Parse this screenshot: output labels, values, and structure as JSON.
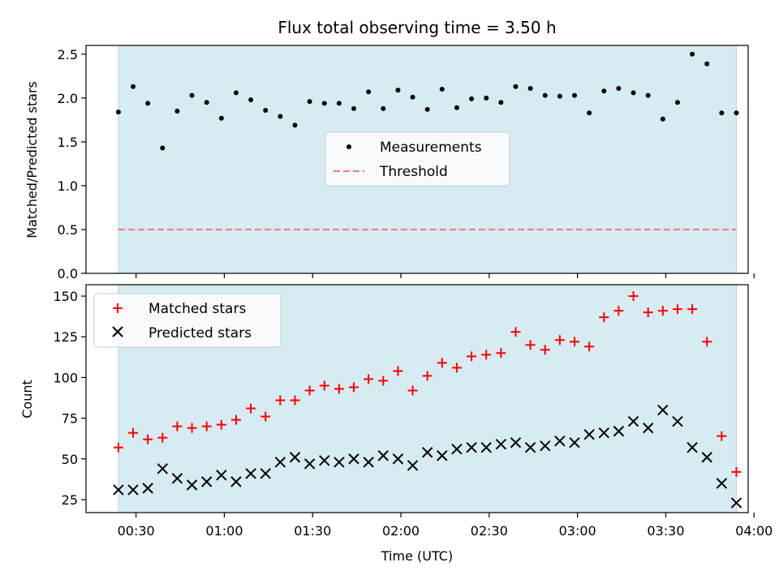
{
  "chart_data": {
    "title": "Flux total observing time = 3.50 h",
    "xlabel": "Time (UTC)",
    "x_unit": "minutes after 00:00 UTC",
    "xlim": [
      13,
      238
    ],
    "xticks": [
      30,
      60,
      90,
      120,
      150,
      180,
      210,
      240
    ],
    "xtick_labels": [
      "00:30",
      "01:00",
      "01:30",
      "02:00",
      "02:30",
      "03:00",
      "03:30",
      "04:00"
    ],
    "shaded_span": {
      "from": 24,
      "to": 234,
      "color": "#add8e6"
    },
    "x": [
      24,
      29,
      34,
      39,
      44,
      49,
      54,
      59,
      64,
      69,
      74,
      79,
      84,
      89,
      94,
      99,
      104,
      109,
      114,
      119,
      124,
      129,
      134,
      139,
      144,
      149,
      154,
      159,
      164,
      169,
      174,
      179,
      184,
      189,
      194,
      199,
      204,
      209,
      214,
      219,
      224,
      229,
      234
    ],
    "panels": [
      {
        "type": "scatter",
        "ylabel": "Matched/Predicted stars",
        "ylim": [
          0,
          2.6
        ],
        "yticks": [
          0.0,
          0.5,
          1.0,
          1.5,
          2.0,
          2.5
        ],
        "ytick_labels": [
          "0.0",
          "0.5",
          "1.0",
          "1.5",
          "2.0",
          "2.5"
        ],
        "legend_position": "center",
        "series": [
          {
            "name": "Measurements",
            "marker": "dot",
            "color": "#000000",
            "values": [
              1.84,
              2.13,
              1.94,
              1.43,
              1.85,
              2.03,
              1.95,
              1.77,
              2.06,
              1.98,
              1.86,
              1.79,
              1.69,
              1.96,
              1.94,
              1.94,
              1.88,
              2.07,
              1.88,
              2.09,
              2.01,
              1.87,
              2.1,
              1.89,
              1.99,
              2.0,
              1.95,
              2.13,
              2.11,
              2.03,
              2.02,
              2.03,
              1.83,
              2.08,
              2.11,
              2.06,
              2.03,
              1.76,
              1.95,
              2.5,
              2.39,
              1.83,
              1.83
            ]
          },
          {
            "name": "Threshold",
            "marker": "dashed-line",
            "color": "#f08080",
            "value": 0.5
          }
        ]
      },
      {
        "type": "scatter",
        "ylabel": "Count",
        "ylim": [
          17,
          157
        ],
        "yticks": [
          25,
          50,
          75,
          100,
          125,
          150
        ],
        "ytick_labels": [
          "25",
          "50",
          "75",
          "100",
          "125",
          "150"
        ],
        "legend_position": "upper-left",
        "series": [
          {
            "name": "Matched stars",
            "marker": "plus",
            "color": "#ff0000",
            "values": [
              57,
              66,
              62,
              63,
              70,
              69,
              70,
              71,
              74,
              81,
              76,
              86,
              86,
              92,
              95,
              93,
              94,
              99,
              98,
              104,
              92,
              101,
              109,
              106,
              113,
              114,
              115,
              128,
              120,
              117,
              123,
              122,
              119,
              137,
              141,
              150,
              140,
              141,
              142,
              142,
              122,
              64,
              42
            ]
          },
          {
            "name": "Predicted stars",
            "marker": "x",
            "color": "#000000",
            "values": [
              31,
              31,
              32,
              44,
              38,
              34,
              36,
              40,
              36,
              41,
              41,
              48,
              51,
              47,
              49,
              48,
              50,
              48,
              52,
              50,
              46,
              54,
              52,
              56,
              57,
              57,
              59,
              60,
              57,
              58,
              61,
              60,
              65,
              66,
              67,
              73,
              69,
              80,
              73,
              57,
              51,
              35,
              23
            ]
          }
        ]
      }
    ]
  }
}
